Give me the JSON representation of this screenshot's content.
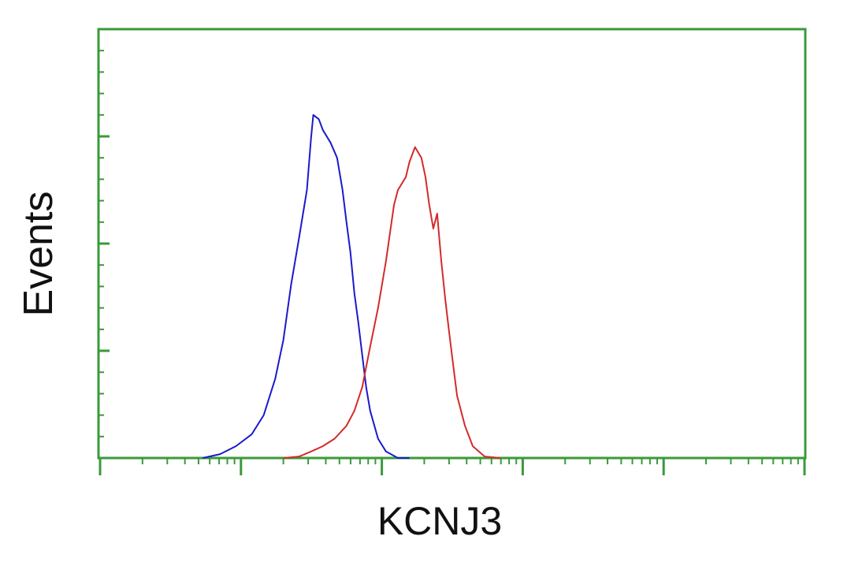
{
  "chart_data": {
    "type": "line",
    "x_label": "KCNJ3",
    "y_label": "Events",
    "xscale": "log",
    "xlim": [
      1,
      100000
    ],
    "xticks": [
      1,
      10,
      100,
      1000,
      10000,
      100000
    ],
    "ylim": [
      0,
      200
    ],
    "yticks": [
      0,
      50,
      100,
      150,
      200
    ],
    "axis_color": "#3a9a3a",
    "series": [
      {
        "color": "#1a1acc",
        "x": [
          5.35,
          7.11,
          9.21,
          11.9,
          14.5,
          17.5,
          20.0,
          22.7,
          25.9,
          29.4,
          31.4,
          32.6,
          35.7,
          38.1,
          43.3,
          48.1,
          52.6,
          56.1,
          59.8,
          63.8,
          68.1,
          72.6,
          77.4,
          82.6,
          94.0,
          107,
          130,
          157
        ],
        "values": [
          0,
          1.8,
          5.5,
          11,
          20,
          37,
          55,
          81,
          103,
          125,
          149,
          160,
          158,
          153,
          147,
          140,
          125,
          110,
          96,
          77,
          63,
          48,
          33,
          22,
          9,
          3,
          0,
          0
        ]
      },
      {
        "color": "#d42a2a",
        "x": [
          20.0,
          25.9,
          31.4,
          38.1,
          46.2,
          56.1,
          63.8,
          72.6,
          82.6,
          94.0,
          107,
          122,
          130,
          148,
          157,
          172,
          191,
          204,
          217,
          232,
          247,
          264,
          282,
          300,
          320,
          342,
          389,
          442,
          537,
          695
        ],
        "values": [
          0,
          0.7,
          3,
          5.5,
          9,
          15,
          22,
          33,
          52,
          70,
          92,
          118,
          125,
          131,
          138,
          145,
          140,
          131,
          118,
          107,
          114,
          92,
          74,
          59,
          44,
          29,
          15,
          5.5,
          0.7,
          0
        ]
      }
    ]
  }
}
